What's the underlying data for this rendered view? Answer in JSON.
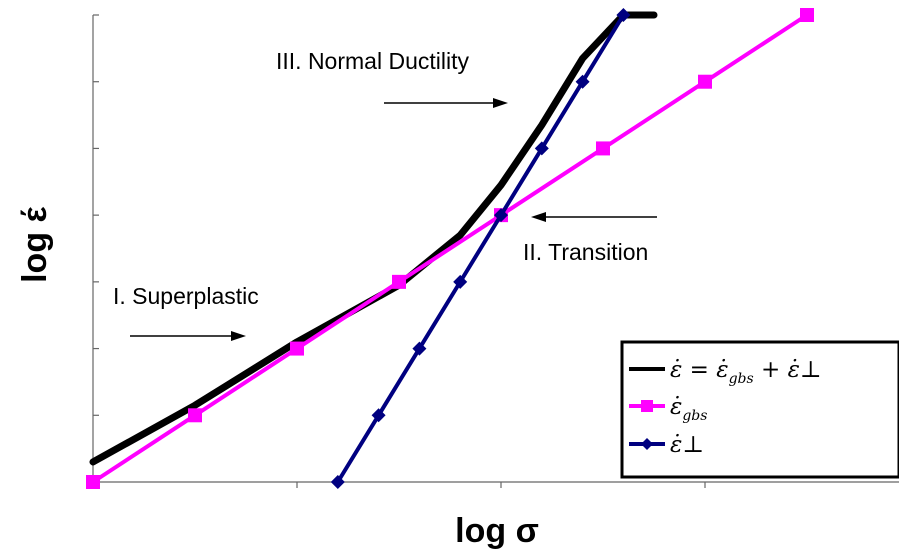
{
  "chart_data": {
    "type": "line",
    "title": "",
    "xlabel": "log σ",
    "ylabel": "log έ",
    "xlim": [
      0,
      4
    ],
    "ylim": [
      0,
      7
    ],
    "grid": false,
    "legend_position": "bottom-right",
    "series": [
      {
        "name": "ε̇ = ε̇gbs + ε̇⊥",
        "legend_main": "ε̇ = ε̇",
        "legend_sub": "gbs",
        "legend_tail": " + ε̇⊥",
        "color": "#000000",
        "marker": "none",
        "x": [
          0.0,
          0.5,
          1.0,
          1.5,
          1.8,
          2.0,
          2.2,
          2.4,
          2.6,
          2.75
        ],
        "y": [
          0.3,
          1.15,
          2.1,
          2.95,
          3.7,
          4.45,
          5.35,
          6.35,
          7.0,
          7.0
        ]
      },
      {
        "name": "ε̇gbs",
        "legend_main": "ε̇",
        "legend_sub": "gbs",
        "color": "#ff00ff",
        "marker": "square",
        "x": [
          0.0,
          0.5,
          1.0,
          1.5,
          2.0,
          2.5,
          3.0,
          3.5
        ],
        "y": [
          0.0,
          1.0,
          2.0,
          3.0,
          4.0,
          5.0,
          6.0,
          7.0
        ]
      },
      {
        "name": "ε̇⊥",
        "legend_main": "ε̇⊥",
        "color": "#000080",
        "marker": "diamond",
        "x": [
          1.2,
          1.4,
          1.6,
          1.8,
          2.0,
          2.2,
          2.4,
          2.6
        ],
        "y": [
          0.0,
          1.0,
          2.0,
          3.0,
          4.0,
          5.0,
          6.0,
          7.0
        ]
      }
    ],
    "annotations": [
      {
        "id": "superplastic",
        "text": "I. Superplastic",
        "arrow": "right"
      },
      {
        "id": "transition",
        "text": "II. Transition",
        "arrow": "left"
      },
      {
        "id": "normal",
        "text": "III. Normal Ductility",
        "arrow": "right"
      }
    ]
  }
}
